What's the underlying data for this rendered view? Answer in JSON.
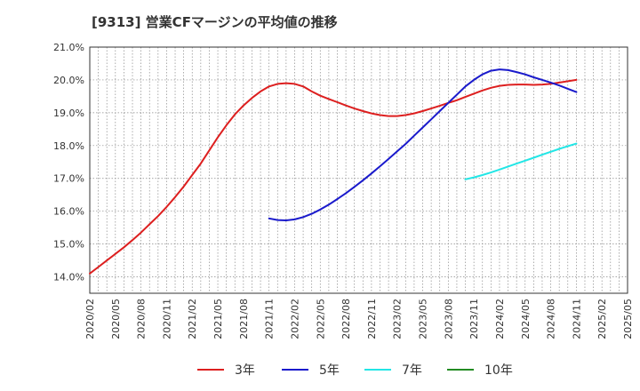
{
  "title": "[9313]  営業CFマージンの平均値の推移",
  "chart_data": {
    "type": "line",
    "title": "[9313]  営業CFマージンの平均値の推移",
    "xlabel": "",
    "ylabel": "",
    "ylim": [
      13.5,
      21.0
    ],
    "yticks": [
      "14.0%",
      "15.0%",
      "16.0%",
      "17.0%",
      "18.0%",
      "19.0%",
      "20.0%",
      "21.0%"
    ],
    "ytick_values": [
      14,
      15,
      16,
      17,
      18,
      19,
      20,
      21
    ],
    "xticks": [
      "2020/02",
      "2020/05",
      "2020/08",
      "2020/11",
      "2021/02",
      "2021/05",
      "2021/08",
      "2021/11",
      "2022/02",
      "2022/05",
      "2022/08",
      "2022/11",
      "2023/02",
      "2023/05",
      "2023/08",
      "2023/11",
      "2024/02",
      "2024/05",
      "2024/08",
      "2024/11",
      "2025/02",
      "2025/05"
    ],
    "grid": true,
    "legend_position": "bottom",
    "series": [
      {
        "name": "3年",
        "color": "#dd1f1f",
        "x": [
          "2020/02",
          "2020/03",
          "2020/04",
          "2020/05",
          "2020/06",
          "2020/07",
          "2020/08",
          "2020/09",
          "2020/10",
          "2020/11",
          "2020/12",
          "2021/01",
          "2021/02",
          "2021/03",
          "2021/04",
          "2021/05",
          "2021/06",
          "2021/07",
          "2021/08",
          "2021/09",
          "2021/10",
          "2021/11",
          "2021/12",
          "2022/01",
          "2022/02",
          "2022/03",
          "2022/04",
          "2022/05",
          "2022/06",
          "2022/07",
          "2022/08",
          "2022/09",
          "2022/10",
          "2022/11",
          "2022/12",
          "2023/01",
          "2023/02",
          "2023/03",
          "2023/04",
          "2023/05",
          "2023/06",
          "2023/07",
          "2023/08",
          "2023/09",
          "2023/10",
          "2023/11",
          "2023/12",
          "2024/01",
          "2024/02",
          "2024/03",
          "2024/04",
          "2024/05",
          "2024/06",
          "2024/07",
          "2024/08",
          "2024/09",
          "2024/10",
          "2024/11"
        ],
        "values": [
          14.1,
          14.3,
          14.5,
          14.7,
          14.9,
          15.12,
          15.35,
          15.6,
          15.85,
          16.13,
          16.43,
          16.75,
          17.1,
          17.45,
          17.85,
          18.25,
          18.62,
          18.95,
          19.22,
          19.45,
          19.65,
          19.8,
          19.88,
          19.9,
          19.88,
          19.8,
          19.65,
          19.52,
          19.42,
          19.32,
          19.22,
          19.13,
          19.05,
          18.98,
          18.93,
          18.9,
          18.9,
          18.93,
          18.98,
          19.05,
          19.13,
          19.21,
          19.3,
          19.38,
          19.48,
          19.58,
          19.68,
          19.76,
          19.82,
          19.85,
          19.86,
          19.86,
          19.85,
          19.86,
          19.88,
          19.92,
          19.96,
          20.0
        ]
      },
      {
        "name": "5年",
        "color": "#1a1acc",
        "x": [
          "2021/11",
          "2021/12",
          "2022/01",
          "2022/02",
          "2022/03",
          "2022/04",
          "2022/05",
          "2022/06",
          "2022/07",
          "2022/08",
          "2022/09",
          "2022/10",
          "2022/11",
          "2022/12",
          "2023/01",
          "2023/02",
          "2023/03",
          "2023/04",
          "2023/05",
          "2023/06",
          "2023/07",
          "2023/08",
          "2023/09",
          "2023/10",
          "2023/11",
          "2023/12",
          "2024/01",
          "2024/02",
          "2024/03",
          "2024/04",
          "2024/05",
          "2024/06",
          "2024/07",
          "2024/08",
          "2024/09",
          "2024/10",
          "2024/11"
        ],
        "values": [
          15.78,
          15.73,
          15.72,
          15.75,
          15.82,
          15.92,
          16.05,
          16.2,
          16.37,
          16.55,
          16.74,
          16.94,
          17.15,
          17.37,
          17.59,
          17.82,
          18.05,
          18.3,
          18.55,
          18.8,
          19.05,
          19.3,
          19.55,
          19.8,
          20.0,
          20.17,
          20.28,
          20.32,
          20.3,
          20.24,
          20.17,
          20.08,
          20.0,
          19.92,
          19.83,
          19.73,
          19.63
        ]
      },
      {
        "name": "7年",
        "color": "#22e6e6",
        "x": [
          "2023/10",
          "2023/11",
          "2023/12",
          "2024/01",
          "2024/02",
          "2024/03",
          "2024/04",
          "2024/05",
          "2024/06",
          "2024/07",
          "2024/08",
          "2024/09",
          "2024/10",
          "2024/11"
        ],
        "values": [
          16.97,
          17.03,
          17.1,
          17.18,
          17.27,
          17.36,
          17.45,
          17.54,
          17.63,
          17.72,
          17.81,
          17.9,
          17.98,
          18.06
        ]
      },
      {
        "name": "10年",
        "color": "#228b22",
        "x": [],
        "values": []
      }
    ]
  }
}
